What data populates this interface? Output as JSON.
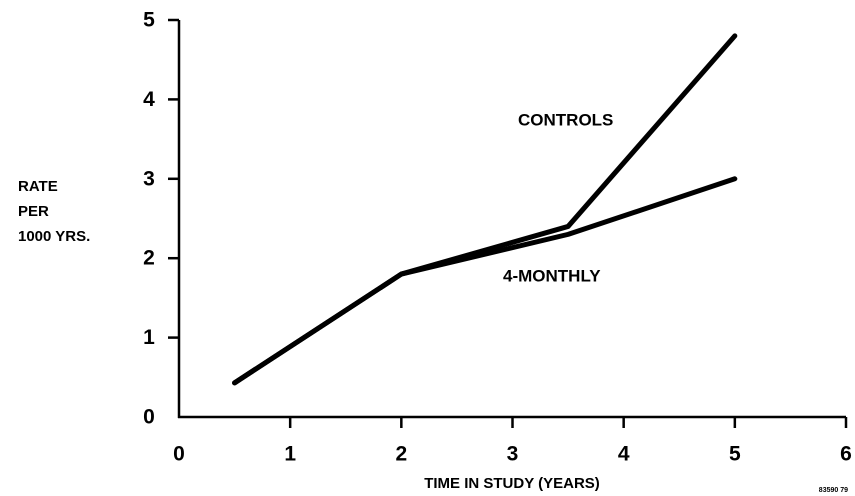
{
  "chart_data": {
    "type": "line",
    "xlabel": "TIME IN STUDY (YEARS)",
    "ylabel": [
      "RATE",
      "PER",
      "1000 YRS."
    ],
    "figure_code": "83590 79",
    "x": [
      0.5,
      2,
      3.5,
      5
    ],
    "series": [
      {
        "name": "CONTROLS",
        "color": "#000000",
        "values": [
          0.43,
          1.8,
          2.4,
          4.8
        ]
      },
      {
        "name": "4-MONTHLY",
        "color": "#000000",
        "values": [
          0.43,
          1.8,
          2.3,
          3.0
        ]
      }
    ],
    "xlim": [
      0,
      6
    ],
    "xticks": [
      0,
      1,
      2,
      3,
      4,
      5,
      6
    ],
    "ylim": [
      0,
      5
    ],
    "yticks": [
      0,
      1,
      2,
      3,
      4,
      5
    ],
    "grid": false
  }
}
